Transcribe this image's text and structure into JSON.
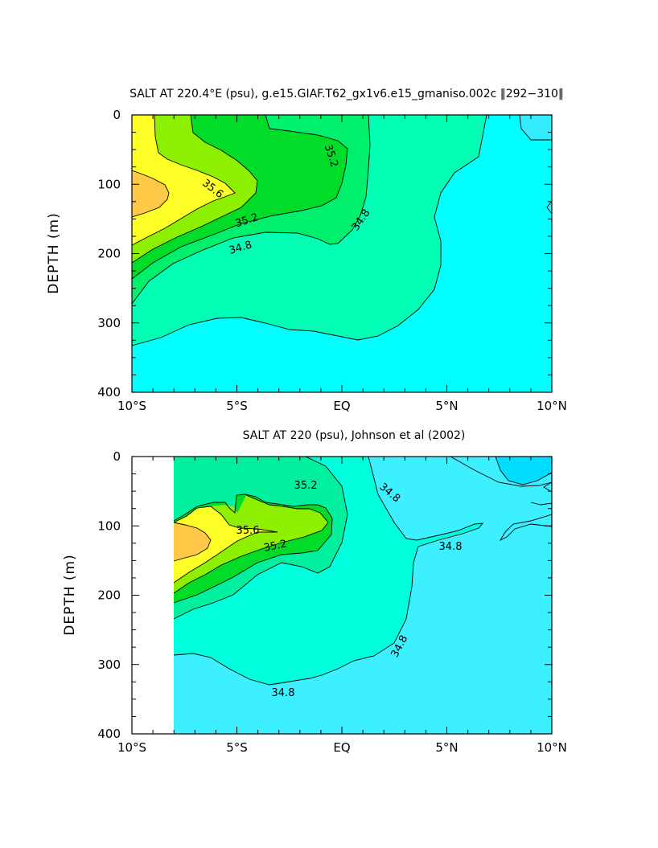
{
  "chart_data": [
    {
      "type": "contour",
      "title": "SALT AT 220.4°E (psu), g.e15.GIAF.T62_gx1v6.e15_gmaniso.002c ‖292−310‖",
      "xlabel": "",
      "ylabel": "DEPTH (m)",
      "xlim": [
        -10,
        10
      ],
      "ylim": [
        400,
        0
      ],
      "x_ticks": [
        "10°S",
        "5°S",
        "EQ",
        "5°N",
        "10°N"
      ],
      "y_ticks": [
        "0",
        "100",
        "200",
        "300",
        "400"
      ],
      "contour_interval": 0.2,
      "contour_labels": [
        "35.6",
        "35.2",
        "34.8",
        "35.2",
        "34.8"
      ],
      "colors": {
        "lt_34.6": "#00ffff",
        "34.6_34.8": "#00ffff",
        "34.8_35.0": "#00ffb4",
        "35.0_35.2": "#00f06e",
        "35.2_35.4": "#00dc28",
        "35.4_35.6": "#8cf000",
        "35.6_35.8": "#ffff28",
        "gt_35.8": "#ffc846"
      },
      "max_salinity_core": {
        "lat": -10,
        "depth_m": 130,
        "value_gt": 35.8
      }
    },
    {
      "type": "contour",
      "title": "SALT AT 220 (psu), Johnson et al (2002)",
      "xlabel": "",
      "ylabel": "DEPTH (m)",
      "xlim": [
        -10,
        10
      ],
      "ylim": [
        400,
        0
      ],
      "x_ticks": [
        "10°S",
        "5°S",
        "EQ",
        "5°N",
        "10°N"
      ],
      "y_ticks": [
        "0",
        "100",
        "200",
        "300",
        "400"
      ],
      "data_extent": {
        "lat_min": -8,
        "lat_max": 10,
        "depth_min_m": 10,
        "depth_max_m": 400
      },
      "contour_interval": 0.2,
      "contour_labels": [
        "35.2",
        "34.8",
        "35.6",
        "35.2",
        "34.8",
        "34.8",
        "34.8"
      ],
      "colors": {
        "lt_34.6": "#00dcff",
        "34.6_34.8": "#3cf0ff",
        "34.8_35.0": "#00ffdc",
        "35.0_35.2": "#00f0a0",
        "35.2_35.4": "#00dc28",
        "35.4_35.6": "#8cf000",
        "35.6_35.8": "#ffff28",
        "gt_35.8": "#ffc846"
      },
      "max_salinity_core": {
        "lat": -7.8,
        "depth_m": 130,
        "value_gt": 35.8
      }
    }
  ]
}
